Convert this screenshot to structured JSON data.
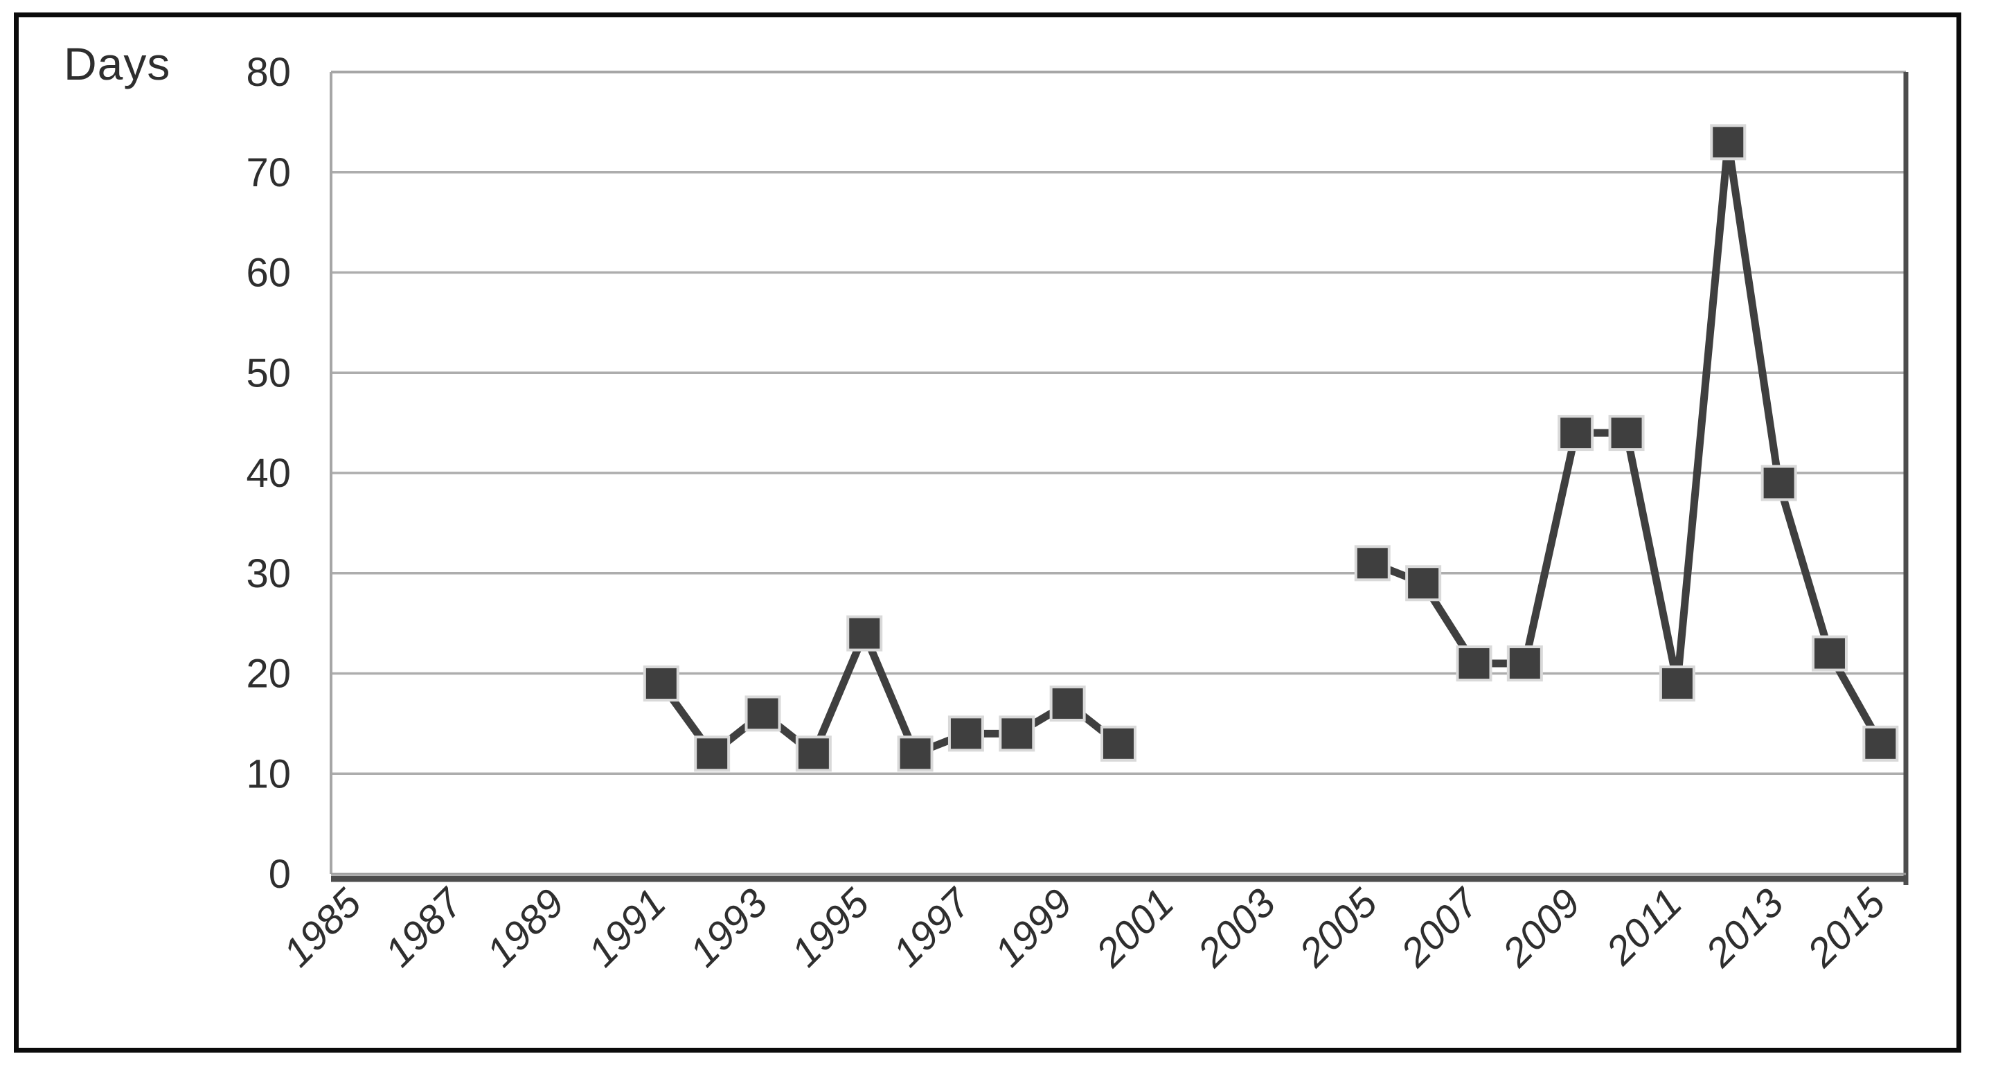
{
  "figure": {
    "y_axis_title": "Days"
  },
  "colors": {
    "background": "#ffffff",
    "outer_frame": "#0b0b0b",
    "gridline": "#adadad",
    "plot_border_light": "#a6a6a6",
    "plot_border_dark": "#4d4d4d",
    "axis_line_light": "#999999",
    "series": "#3f3f3f",
    "marker_fill": "#3f3f3f",
    "marker_outline": "#d9d9d9",
    "text": "#2e2e2e"
  },
  "chart_data": {
    "type": "line",
    "title": "",
    "xlabel": "",
    "ylabel": "Days",
    "ylim": [
      0,
      80
    ],
    "y_tick_interval": 10,
    "y_tick_labels": [
      "0",
      "10",
      "20",
      "30",
      "40",
      "50",
      "60",
      "70",
      "80"
    ],
    "x_range": [
      1985,
      2015
    ],
    "x_tick_labels": [
      "1985",
      "1987",
      "1989",
      "1991",
      "1993",
      "1995",
      "1997",
      "1999",
      "2001",
      "2003",
      "2005",
      "2007",
      "2009",
      "2011",
      "2013",
      "2015"
    ],
    "grid": "horizontal",
    "legend": "none",
    "marker": "square",
    "line_gaps": [
      [
        1985,
        1990
      ],
      [
        2001,
        2004
      ]
    ],
    "series": [
      {
        "name": "Days",
        "points": [
          {
            "year": 1991,
            "value": 19
          },
          {
            "year": 1992,
            "value": 12
          },
          {
            "year": 1993,
            "value": 16
          },
          {
            "year": 1994,
            "value": 12
          },
          {
            "year": 1995,
            "value": 24
          },
          {
            "year": 1996,
            "value": 12
          },
          {
            "year": 1997,
            "value": 14
          },
          {
            "year": 1998,
            "value": 14
          },
          {
            "year": 1999,
            "value": 17
          },
          {
            "year": 2000,
            "value": 13
          },
          {
            "year": 2005,
            "value": 31
          },
          {
            "year": 2006,
            "value": 29
          },
          {
            "year": 2007,
            "value": 21
          },
          {
            "year": 2008,
            "value": 21
          },
          {
            "year": 2009,
            "value": 44
          },
          {
            "year": 2010,
            "value": 44
          },
          {
            "year": 2011,
            "value": 19
          },
          {
            "year": 2012,
            "value": 73
          },
          {
            "year": 2013,
            "value": 39
          },
          {
            "year": 2014,
            "value": 22
          },
          {
            "year": 2015,
            "value": 13
          }
        ]
      }
    ]
  }
}
